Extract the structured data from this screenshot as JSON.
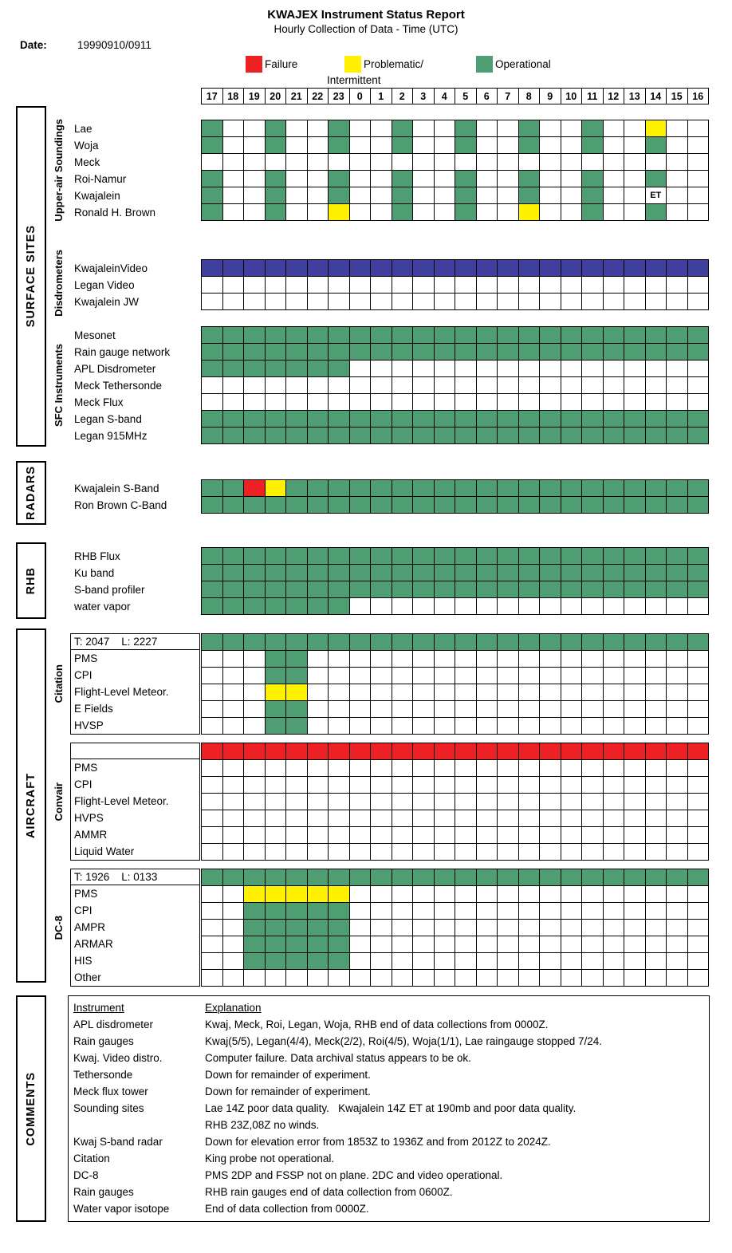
{
  "title": "KWAJEX Instrument Status Report",
  "subtitle": "Hourly Collection of Data - Time (UTC)",
  "date_label": "Date:",
  "date_value": "19990910/0911",
  "legend": [
    {
      "label": "Failure",
      "label2": "",
      "color": "#ed2024"
    },
    {
      "label": "Problematic/",
      "label2": "Intermittent",
      "color": "#fff100"
    },
    {
      "label": "Operational",
      "label2": "",
      "color": "#4f9d72"
    }
  ],
  "status_colors": {
    "O": "#4f9d72",
    "F": "#ed2024",
    "P": "#fff100",
    "B": "#413f9e"
  },
  "sections": [
    {
      "label": "SURFACE SITES"
    },
    {
      "label": "RADARS"
    },
    {
      "label": "RHB"
    },
    {
      "label": "AIRCRAFT"
    },
    {
      "label": "COMMENTS"
    }
  ],
  "chart_data": {
    "type": "heatmap",
    "title": "KWAJEX Instrument Status Report",
    "subtitle": "Hourly Collection of Data - Time (UTC)",
    "date": "19990910/0911",
    "x_label": "Time (UTC)",
    "x_labels": [
      "17",
      "18",
      "19",
      "20",
      "21",
      "22",
      "23",
      "0",
      "1",
      "2",
      "3",
      "4",
      "5",
      "6",
      "7",
      "8",
      "9",
      "10",
      "11",
      "12",
      "13",
      "14",
      "15",
      "16"
    ],
    "cell_codes": {
      "O": "Operational",
      "P": "Problematic/Intermittent",
      "F": "Failure",
      "B": "Video status (blue)",
      "E": "ET annotation",
      ".": "no data"
    },
    "groups": [
      {
        "id": "soundings",
        "section": "SURFACE SITES",
        "subgroup": "Upper-air Soundings",
        "rows": [
          {
            "label": "Lae",
            "cells": "O..O..O..O..O..O..O..P.."
          },
          {
            "label": "Woja",
            "cells": "O..O..O..O..O..O..O..O.."
          },
          {
            "label": "Meck",
            "cells": "........................"
          },
          {
            "label": "Roi-Namur",
            "cells": "O..O..O..O..O..O..O..O.."
          },
          {
            "label": "Kwajalein",
            "cells": "O..O..O..O..O..O..O..E.."
          },
          {
            "label": "Ronald H. Brown",
            "cells": "O..O..P..O..O..P..O..O.."
          }
        ]
      },
      {
        "id": "disdrometers",
        "section": "SURFACE SITES",
        "subgroup": "Disdrometers",
        "rows": [
          {
            "label": "KwajaleinVideo",
            "cells": "BBBBBBBBBBBBBBBBBBBBBBBB"
          },
          {
            "label": "Legan Video",
            "cells": "........................"
          },
          {
            "label": "Kwajalein JW",
            "cells": "........................"
          }
        ]
      },
      {
        "id": "sfc",
        "section": "SURFACE SITES",
        "subgroup": "SFC Instruments",
        "rows": [
          {
            "label": "Mesonet",
            "cells": "OOOOOOOOOOOOOOOOOOOOOOOO"
          },
          {
            "label": "Rain gauge network",
            "cells": "OOOOOOOOOOOOOOOOOOOOOOOO"
          },
          {
            "label": "APL Disdrometer",
            "cells": "OOOOOOO................."
          },
          {
            "label": "Meck Tethersonde",
            "cells": "........................"
          },
          {
            "label": "Meck Flux",
            "cells": "........................"
          },
          {
            "label": "Legan S-band",
            "cells": "OOOOOOOOOOOOOOOOOOOOOOOO"
          },
          {
            "label": "Legan 915MHz",
            "cells": "OOOOOOOOOOOOOOOOOOOOOOOO"
          }
        ]
      },
      {
        "id": "radars",
        "section": "RADARS",
        "subgroup": "",
        "rows": [
          {
            "label": "Kwajalein S-Band",
            "cells": "OOFPOOOOOOOOOOOOOOOOOOOO"
          },
          {
            "label": "Ron Brown C-Band",
            "cells": "OOOOOOOOOOOOOOOOOOOOOOOO"
          }
        ]
      },
      {
        "id": "rhb",
        "section": "RHB",
        "subgroup": "",
        "rows": [
          {
            "label": "RHB Flux",
            "cells": "OOOOOOOOOOOOOOOOOOOOOOOO"
          },
          {
            "label": "Ku band",
            "cells": "OOOOOOOOOOOOOOOOOOOOOOOO"
          },
          {
            "label": "S-band profiler",
            "cells": "OOOOOOOOOOOOOOOOOOOOOOOO"
          },
          {
            "label": "water vapor",
            "cells": "OOOOOOO................."
          }
        ]
      },
      {
        "id": "citation",
        "section": "AIRCRAFT",
        "subgroup": "Citation",
        "rows": [
          {
            "label": "T: 2047    L: 2227",
            "boxed": true,
            "cells": "OOOOOOOOOOOOOOOOOOOOOOOO"
          },
          {
            "label": "PMS",
            "cells": "...OO..................."
          },
          {
            "label": "CPI",
            "cells": "...OO..................."
          },
          {
            "label": "Flight-Level Meteor.",
            "cells": "...PP..................."
          },
          {
            "label": "E Fields",
            "cells": "...OO..................."
          },
          {
            "label": "HVSP",
            "cells": "...OO..................."
          }
        ]
      },
      {
        "id": "convair",
        "section": "AIRCRAFT",
        "subgroup": "Convair",
        "rows": [
          {
            "label": "",
            "boxed": true,
            "cells": "FFFFFFFFFFFFFFFFFFFFFFFF"
          },
          {
            "label": "PMS",
            "cells": "........................"
          },
          {
            "label": "CPI",
            "cells": "........................"
          },
          {
            "label": "Flight-Level Meteor.",
            "cells": "........................"
          },
          {
            "label": "HVPS",
            "cells": "........................"
          },
          {
            "label": "AMMR",
            "cells": "........................"
          },
          {
            "label": "Liquid Water",
            "cells": "........................"
          }
        ]
      },
      {
        "id": "dc8",
        "section": "AIRCRAFT",
        "subgroup": "DC-8",
        "rows": [
          {
            "label": "T: 1926    L: 0133",
            "boxed": true,
            "cells": "OOOOOOOOOOOOOOOOOOOOOOOO"
          },
          {
            "label": "PMS",
            "cells": "..PPPPP................."
          },
          {
            "label": "CPI",
            "cells": "..OOOOO................."
          },
          {
            "label": "AMPR",
            "cells": "..OOOOO................."
          },
          {
            "label": "ARMAR",
            "cells": "..OOOOO................."
          },
          {
            "label": "HIS",
            "cells": "..OOOOO................."
          },
          {
            "label": "Other",
            "cells": "........................"
          }
        ]
      }
    ]
  },
  "comments": {
    "col1_header": "Instrument",
    "col2_header": "Explanation",
    "rows": [
      {
        "instrument": "APL disdrometer",
        "explanation": "Kwaj, Meck, Roi, Legan, Woja, RHB end of data collections from 0000Z."
      },
      {
        "instrument": "Rain gauges",
        "explanation": "Kwaj(5/5), Legan(4/4), Meck(2/2), Roi(4/5), Woja(1/1), Lae raingauge stopped 7/24."
      },
      {
        "instrument": "Kwaj. Video distro.",
        "explanation": "Computer failure. Data archival status appears to be ok."
      },
      {
        "instrument": "Tethersonde",
        "explanation": "Down for remainder of experiment."
      },
      {
        "instrument": "Meck flux tower",
        "explanation": "Down for remainder of experiment."
      },
      {
        "instrument": "Sounding sites",
        "explanation": "Lae 14Z poor data quality.   Kwajalein 14Z ET at 190mb and poor data quality."
      },
      {
        "instrument": "",
        "explanation": "RHB 23Z,08Z no winds."
      },
      {
        "instrument": "Kwaj S-band radar",
        "explanation": "Down for elevation error from 1853Z to 1936Z and from 2012Z to 2024Z."
      },
      {
        "instrument": "Citation",
        "explanation": "King probe not operational."
      },
      {
        "instrument": "DC-8",
        "explanation": "PMS 2DP and FSSP not on plane. 2DC and video operational."
      },
      {
        "instrument": "Rain gauges",
        "explanation": "RHB rain gauges end of data collection from 0600Z."
      },
      {
        "instrument": "Water vapor isotope",
        "explanation": "End of data collection from 0000Z."
      }
    ]
  }
}
